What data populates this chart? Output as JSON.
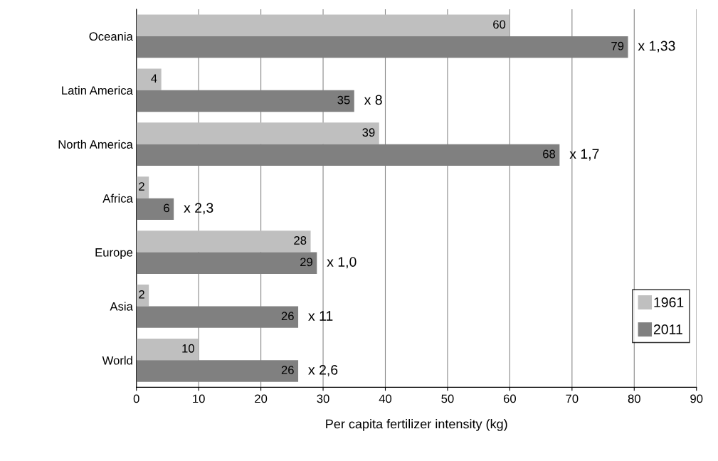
{
  "chart_data": {
    "type": "bar",
    "orientation": "horizontal",
    "xlabel": "Per capita fertilizer intensity (kg)",
    "categories": [
      "Oceania",
      "Latin America",
      "North America",
      "Africa",
      "Europe",
      "Asia",
      "World"
    ],
    "series": [
      {
        "name": "1961",
        "color": "#bfbfbf",
        "values": [
          60,
          4,
          39,
          2,
          28,
          2,
          10
        ]
      },
      {
        "name": "2011",
        "color": "#808080",
        "values": [
          79,
          35,
          68,
          6,
          29,
          26,
          26
        ]
      }
    ],
    "data_labels": true,
    "xlim": [
      0,
      90
    ],
    "xticks": [
      0,
      10,
      20,
      30,
      40,
      50,
      60,
      70,
      80,
      90
    ],
    "grid": "x",
    "legend": "right",
    "annotations": [
      "x 1,33",
      "x 8",
      "x 1,7",
      "x 2,3",
      "x 1,0",
      "x 11",
      "x 2,6"
    ]
  }
}
